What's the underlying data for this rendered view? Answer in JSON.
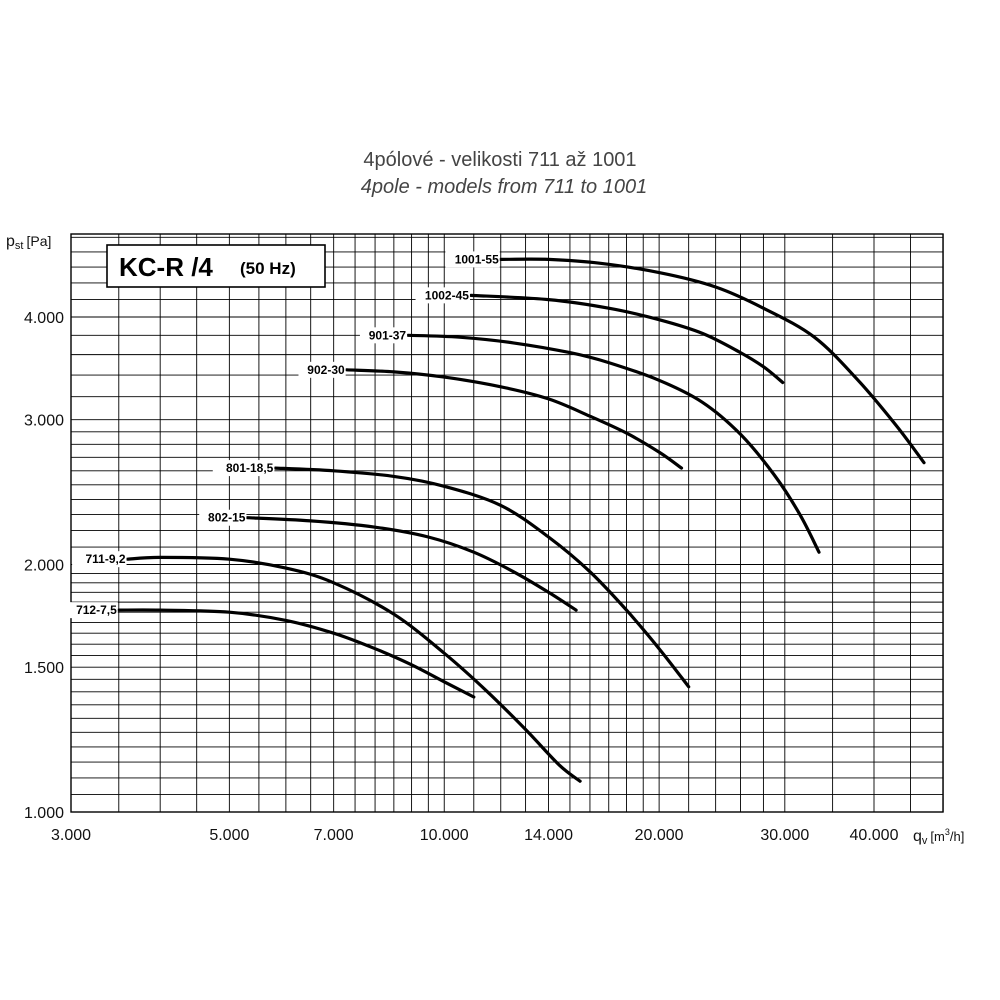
{
  "chart_data": {
    "type": "line",
    "title": "4pólové - velikosti 711 až 1001",
    "subtitle": "4pole - models from 711 to 1001",
    "model_label": "KC-R /4",
    "model_sub": "(50 Hz)",
    "ylabel_main": "p",
    "ylabel_sub": "st",
    "ylabel_unit": "[Pa]",
    "xlabel_main": "q",
    "xlabel_sub": "v",
    "xlabel_unit_pre": "[m",
    "xlabel_unit_sup": "3",
    "xlabel_unit_post": "/h]",
    "x_scale": "log",
    "y_scale": "log",
    "xlim": [
      3000,
      50000
    ],
    "ylim": [
      1000,
      5000
    ],
    "grid": true,
    "x_ticks": [
      {
        "value": 3000,
        "label": "3.000"
      },
      {
        "value": 5000,
        "label": "5.000"
      },
      {
        "value": 7000,
        "label": "7.000"
      },
      {
        "value": 10000,
        "label": "10.000"
      },
      {
        "value": 14000,
        "label": "14.000"
      },
      {
        "value": 20000,
        "label": "20.000"
      },
      {
        "value": 30000,
        "label": "30.000"
      },
      {
        "value": 40000,
        "label": "40.000"
      }
    ],
    "y_ticks": [
      {
        "value": 1000,
        "label": "1.000"
      },
      {
        "value": 1500,
        "label": "1.500"
      },
      {
        "value": 2000,
        "label": "2.000"
      },
      {
        "value": 3000,
        "label": "3.000"
      },
      {
        "value": 4000,
        "label": "4.000"
      }
    ],
    "series": [
      {
        "name": "1001-55",
        "x": [
          12000,
          14000,
          16500,
          20000,
          24000,
          28000,
          33000,
          38000,
          43000,
          47000
        ],
        "y": [
          4700,
          4700,
          4650,
          4530,
          4350,
          4100,
          3780,
          3350,
          2950,
          2660
        ]
      },
      {
        "name": "1002-45",
        "x": [
          10900,
          14000,
          17000,
          20000,
          23000,
          26000,
          28000,
          29800
        ],
        "y": [
          4250,
          4200,
          4100,
          3970,
          3820,
          3620,
          3480,
          3330
        ]
      },
      {
        "name": "901-37",
        "x": [
          8900,
          10500,
          12500,
          15000,
          17000,
          20000,
          23000,
          26000,
          29000,
          31500,
          33500
        ],
        "y": [
          3800,
          3780,
          3720,
          3620,
          3520,
          3350,
          3150,
          2880,
          2570,
          2300,
          2070
        ]
      },
      {
        "name": "902-30",
        "x": [
          7300,
          8500,
          10000,
          12000,
          14000,
          16000,
          18000,
          20000,
          21500
        ],
        "y": [
          3450,
          3430,
          3380,
          3290,
          3180,
          3030,
          2890,
          2740,
          2620
        ]
      },
      {
        "name": "801-18,5",
        "x": [
          5800,
          7000,
          8500,
          10000,
          12000,
          14000,
          16000,
          18000,
          20000,
          22000
        ],
        "y": [
          2620,
          2600,
          2560,
          2490,
          2360,
          2160,
          1960,
          1760,
          1580,
          1420
        ]
      },
      {
        "name": "802-15",
        "x": [
          5300,
          6500,
          8000,
          9500,
          11000,
          12500,
          14000,
          15300
        ],
        "y": [
          2280,
          2260,
          2220,
          2160,
          2070,
          1960,
          1850,
          1760
        ]
      },
      {
        "name": "711-9,2",
        "x": [
          3600,
          4000,
          5000,
          6000,
          7000,
          8500,
          10000,
          11500,
          13000,
          14500,
          15500
        ],
        "y": [
          2030,
          2040,
          2030,
          1980,
          1900,
          1740,
          1560,
          1400,
          1260,
          1140,
          1090
        ]
      },
      {
        "name": "712-7,5",
        "x": [
          3500,
          4000,
          5000,
          6000,
          7000,
          8000,
          9000,
          10000,
          11000
        ],
        "y": [
          1760,
          1760,
          1750,
          1710,
          1650,
          1580,
          1510,
          1440,
          1380
        ]
      }
    ]
  }
}
